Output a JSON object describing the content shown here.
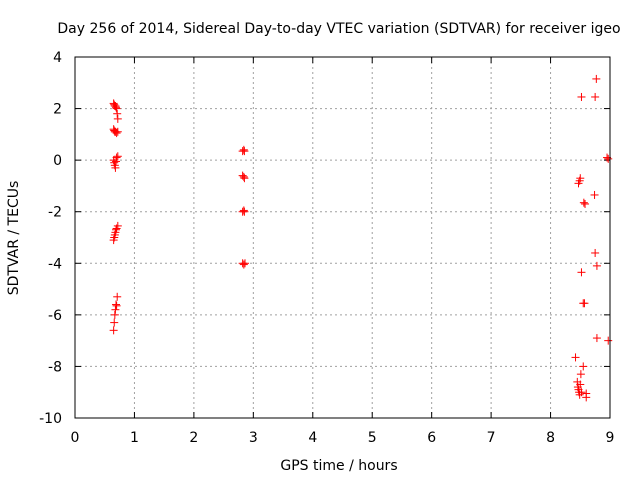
{
  "chart_data": {
    "type": "scatter",
    "title": "Day 256 of 2014, Sidereal Day-to-day VTEC variation (SDTVAR) for receiver igeo",
    "xlabel": "GPS time / hours",
    "ylabel": "SDTVAR / TECUs",
    "xlim": [
      0,
      9
    ],
    "ylim": [
      -10,
      4
    ],
    "xticks": [
      0,
      1,
      2,
      3,
      4,
      5,
      6,
      7,
      8,
      9
    ],
    "yticks": [
      -10,
      -8,
      -6,
      -4,
      -2,
      0,
      2,
      4
    ],
    "grid": true,
    "marker": "+",
    "color": "#ff0000",
    "series": [
      {
        "name": "SDTVAR",
        "points": [
          [
            0.65,
            2.2
          ],
          [
            0.66,
            2.15
          ],
          [
            0.67,
            2.1
          ],
          [
            0.68,
            2.1
          ],
          [
            0.69,
            2.05
          ],
          [
            0.7,
            2.0
          ],
          [
            0.71,
            1.8
          ],
          [
            0.72,
            1.6
          ],
          [
            0.65,
            1.2
          ],
          [
            0.66,
            1.15
          ],
          [
            0.67,
            1.1
          ],
          [
            0.68,
            1.1
          ],
          [
            0.7,
            1.05
          ],
          [
            0.72,
            1.1
          ],
          [
            0.65,
            0.0
          ],
          [
            0.66,
            -0.1
          ],
          [
            0.67,
            -0.2
          ],
          [
            0.68,
            -0.3
          ],
          [
            0.69,
            -0.05
          ],
          [
            0.7,
            0.1
          ],
          [
            0.72,
            0.15
          ],
          [
            0.65,
            -3.1
          ],
          [
            0.66,
            -3.0
          ],
          [
            0.67,
            -2.9
          ],
          [
            0.68,
            -2.8
          ],
          [
            0.69,
            -2.7
          ],
          [
            0.7,
            -2.65
          ],
          [
            0.72,
            -2.55
          ],
          [
            0.65,
            -6.6
          ],
          [
            0.66,
            -6.3
          ],
          [
            0.67,
            -6.0
          ],
          [
            0.68,
            -5.8
          ],
          [
            0.69,
            -5.6
          ],
          [
            0.7,
            -5.65
          ],
          [
            0.71,
            -5.3
          ],
          [
            2.82,
            0.35
          ],
          [
            2.84,
            0.4
          ],
          [
            2.85,
            0.35
          ],
          [
            2.82,
            -0.6
          ],
          [
            2.84,
            -0.65
          ],
          [
            2.85,
            -0.7
          ],
          [
            2.82,
            -2.0
          ],
          [
            2.84,
            -1.95
          ],
          [
            2.85,
            -2.0
          ],
          [
            2.82,
            -4.0
          ],
          [
            2.84,
            -4.05
          ],
          [
            2.86,
            -4.0
          ],
          [
            8.42,
            -7.65
          ],
          [
            8.45,
            -8.6
          ],
          [
            8.46,
            -8.8
          ],
          [
            8.47,
            -8.9
          ],
          [
            8.48,
            -9.0
          ],
          [
            8.49,
            -9.1
          ],
          [
            8.5,
            -8.7
          ],
          [
            8.51,
            -8.3
          ],
          [
            8.52,
            -9.0
          ],
          [
            8.55,
            -8.0
          ],
          [
            8.6,
            -9.05
          ],
          [
            8.6,
            -9.2
          ],
          [
            8.47,
            -0.9
          ],
          [
            8.49,
            -0.8
          ],
          [
            8.5,
            -0.7
          ],
          [
            8.52,
            2.45
          ],
          [
            8.52,
            -4.35
          ],
          [
            8.55,
            -5.55
          ],
          [
            8.57,
            -5.55
          ],
          [
            8.56,
            -1.65
          ],
          [
            8.58,
            -1.7
          ],
          [
            8.74,
            -1.35
          ],
          [
            8.75,
            2.45
          ],
          [
            8.77,
            3.15
          ],
          [
            8.75,
            -3.6
          ],
          [
            8.78,
            -4.1
          ],
          [
            8.78,
            -6.9
          ],
          [
            8.95,
            0.1
          ],
          [
            8.97,
            0.05
          ],
          [
            8.97,
            -7.0
          ]
        ]
      }
    ]
  }
}
